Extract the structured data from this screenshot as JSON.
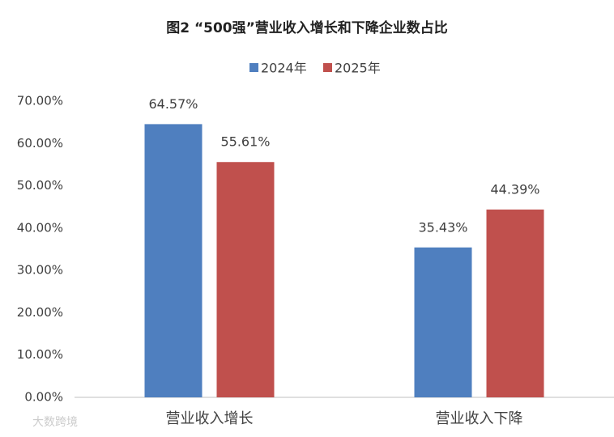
{
  "chart_data": {
    "type": "bar",
    "title": "图2 “500强”营业收入增长和下降企业数占比",
    "categories": [
      "营业收入增长",
      "营业收入下降"
    ],
    "series": [
      {
        "name": "2024年",
        "color": "#4f7fbf",
        "values": [
          64.57,
          35.43
        ],
        "value_labels": [
          "64.57%",
          "35.43%"
        ]
      },
      {
        "name": "2025年",
        "color": "#c0504d",
        "values": [
          55.61,
          44.39
        ],
        "value_labels": [
          "55.61%",
          "44.39%"
        ]
      }
    ],
    "ylim": [
      0,
      70
    ],
    "yticks": [
      {
        "value": 0,
        "label": "0.00%"
      },
      {
        "value": 10,
        "label": "10.00%"
      },
      {
        "value": 20,
        "label": "20.00%"
      },
      {
        "value": 30,
        "label": "30.00%"
      },
      {
        "value": 40,
        "label": "40.00%"
      },
      {
        "value": 50,
        "label": "50.00%"
      },
      {
        "value": 60,
        "label": "60.00%"
      },
      {
        "value": 70,
        "label": "70.00%"
      }
    ],
    "grid": false,
    "legend": "top",
    "watermark": "大数跨境"
  }
}
